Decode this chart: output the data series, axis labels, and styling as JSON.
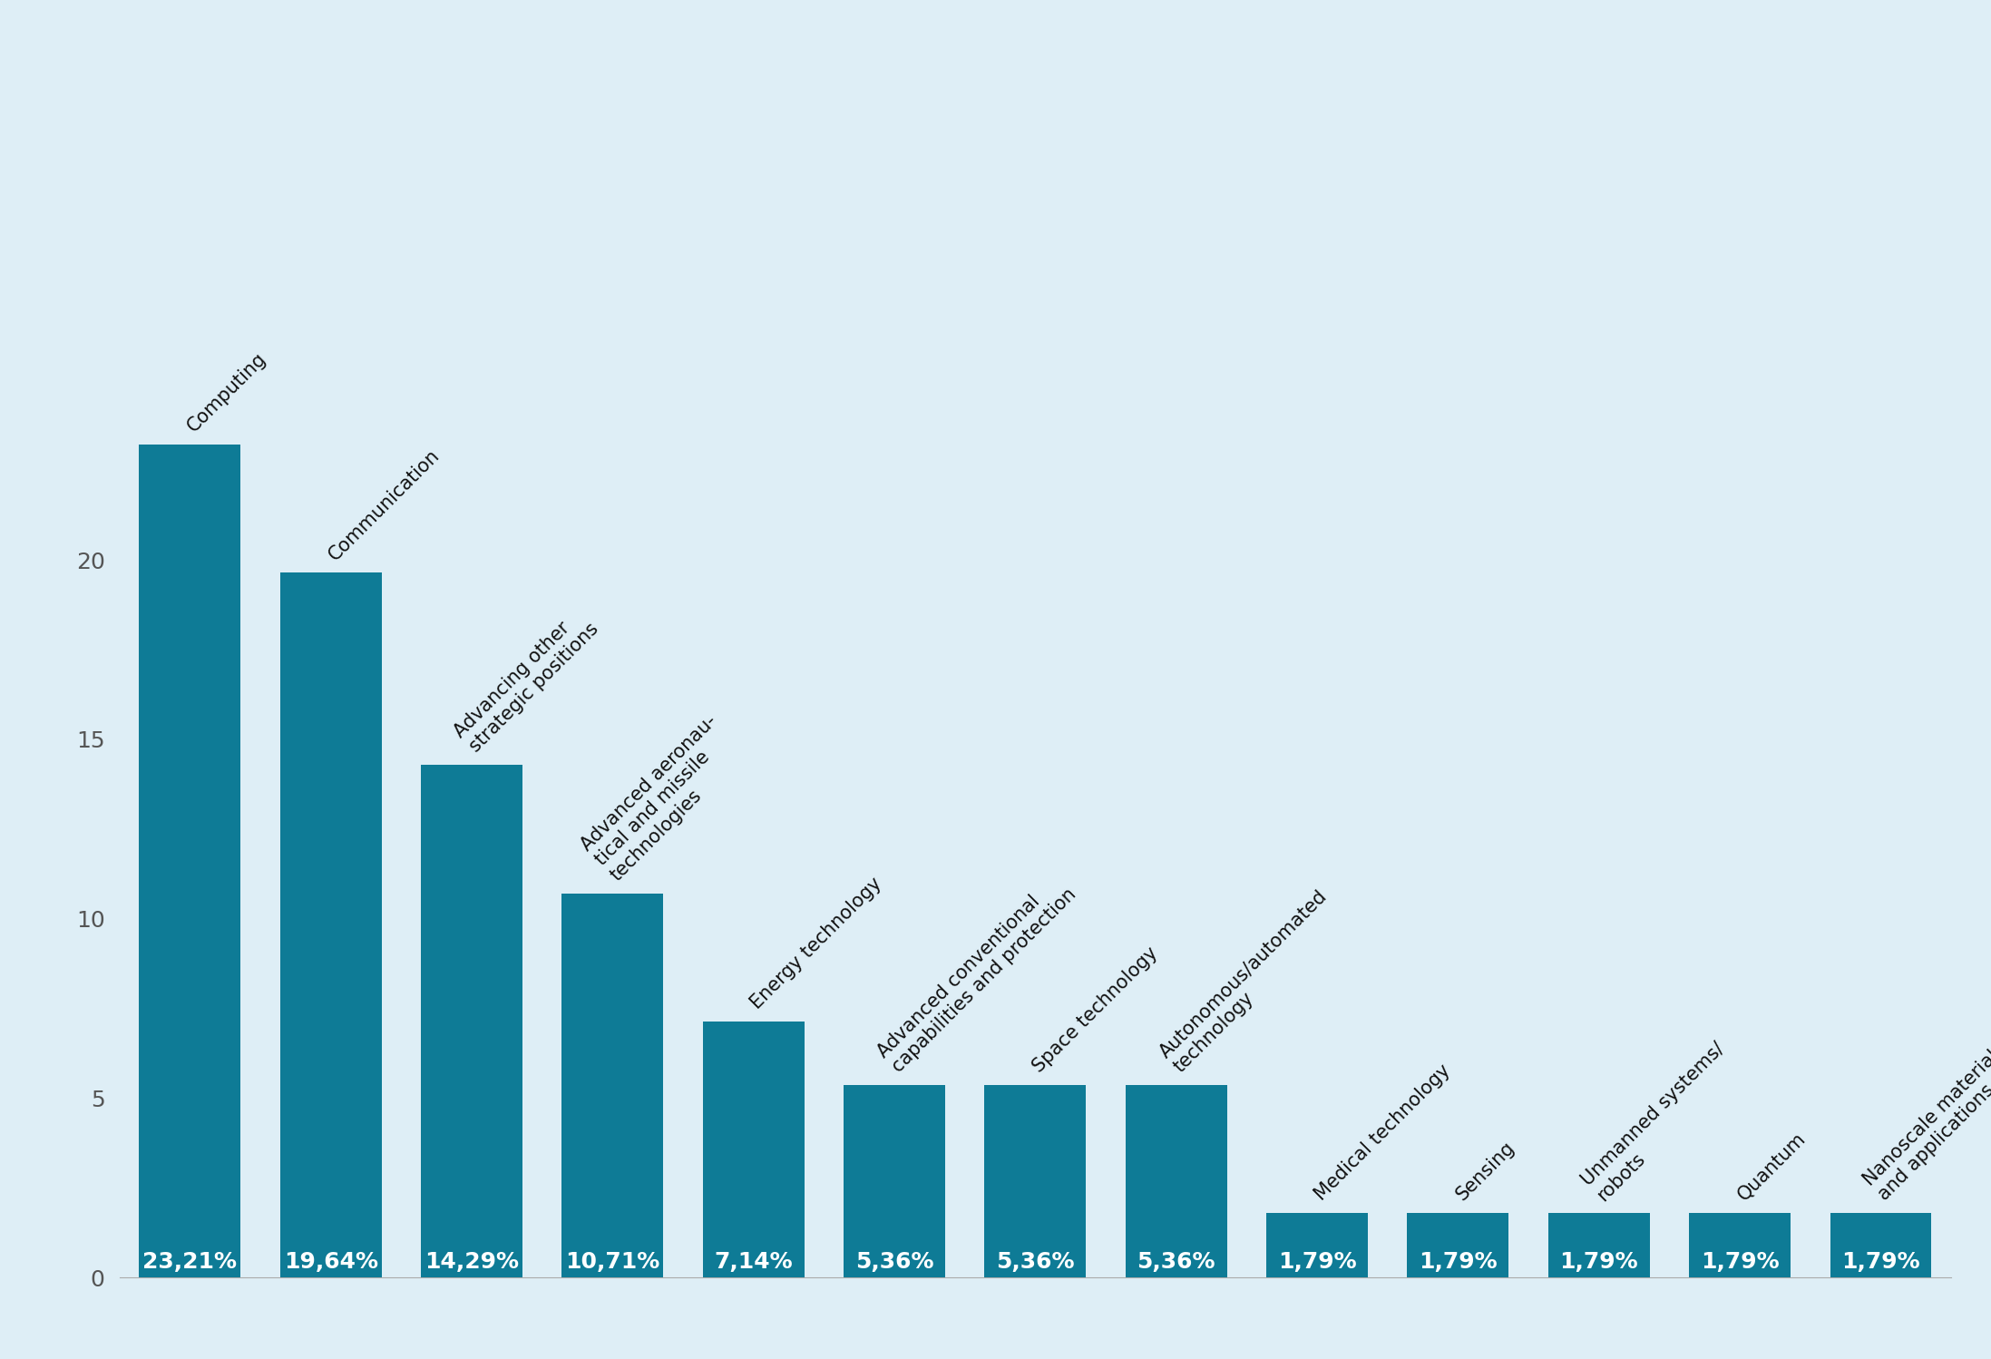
{
  "categories": [
    "Computing",
    "Communication",
    "Advancing other\nstrategic positions",
    "Advanced aeronau-\ntical and missile\ntechnologies",
    "Energy technology",
    "Advanced conventional\ncapabilities and protection",
    "Space technology",
    "Autonomous/automated\ntechnology",
    "Medical technology",
    "Sensing",
    "Unmanned systems/\nrobots",
    "Quantum",
    "Nanoscale materials\nand applications"
  ],
  "values": [
    23.21,
    19.64,
    14.29,
    10.71,
    7.14,
    5.36,
    5.36,
    5.36,
    1.79,
    1.79,
    1.79,
    1.79,
    1.79
  ],
  "labels": [
    "23,21%",
    "19,64%",
    "14,29%",
    "10,71%",
    "7,14%",
    "5,36%",
    "5,36%",
    "5,36%",
    "1,79%",
    "1,79%",
    "1,79%",
    "1,79%",
    "1,79%"
  ],
  "bar_color": "#0e7b96",
  "background_color": "#deeef6",
  "label_text_color": "#ffffff",
  "cat_text_color": "#111111",
  "ytick_color": "#555555",
  "ylim": [
    0,
    25
  ],
  "yticks": [
    0,
    5,
    10,
    15,
    20
  ],
  "label_fontsize": 18,
  "ytick_fontsize": 18,
  "cat_fontsize": 15,
  "bar_width": 0.72
}
